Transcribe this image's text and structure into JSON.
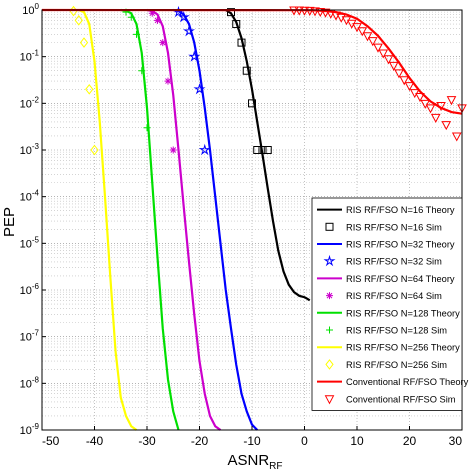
{
  "chart_data": {
    "type": "line",
    "xlabel": "ASNR",
    "xlabel_sub": "RF",
    "ylabel": "PEP",
    "xlim": [
      -50,
      30
    ],
    "ylim": [
      1e-09,
      1
    ],
    "yscale": "log",
    "grid": true,
    "legend_position": "bottom-right",
    "x_ticks": [
      -50,
      -40,
      -30,
      -20,
      -10,
      0,
      10,
      20,
      30
    ],
    "y_ticks": [
      1,
      0.1,
      0.01,
      0.001,
      0.0001,
      1e-05,
      1e-06,
      1e-07,
      1e-08,
      1e-09
    ],
    "y_tick_labels": [
      "10^0",
      "10^-1",
      "10^-2",
      "10^-3",
      "10^-4",
      "10^-5",
      "10^-6",
      "10^-7",
      "10^-8",
      "10^-9"
    ],
    "series": [
      {
        "name": "RIS RF/FSO N=16 Theory",
        "kind": "line",
        "color": "#000000",
        "x": [
          -15,
          -14,
          -13,
          -12,
          -11,
          -10,
          -9,
          -8,
          -7,
          -6,
          -5,
          -4,
          -3,
          -2,
          -1,
          0,
          0.5,
          1
        ],
        "y": [
          1,
          0.85,
          0.55,
          0.25,
          0.08,
          0.02,
          0.004,
          0.0008,
          0.00015,
          3e-05,
          7e-06,
          2.5e-06,
          1.3e-06,
          9e-07,
          7.5e-07,
          7e-07,
          6.5e-07,
          6e-07
        ]
      },
      {
        "name": "RIS RF/FSO N=16 Sim",
        "kind": "marker",
        "marker": "square",
        "color": "#000000",
        "x": [
          -14,
          -13,
          -12,
          -11,
          -10,
          -9,
          -8,
          -7
        ],
        "y": [
          0.9,
          0.5,
          0.2,
          0.05,
          0.01,
          0.001,
          0.001,
          0.001
        ]
      },
      {
        "name": "RIS RF/FSO N=32 Theory",
        "kind": "line",
        "color": "#0000ff",
        "x": [
          -25,
          -24,
          -23,
          -22,
          -21,
          -20,
          -19,
          -18,
          -17,
          -16,
          -15,
          -14,
          -13,
          -12,
          -11,
          -10,
          -9
        ],
        "y": [
          1,
          0.95,
          0.8,
          0.5,
          0.2,
          0.05,
          0.008,
          0.001,
          0.0001,
          1e-05,
          1e-06,
          1.5e-07,
          2.5e-08,
          6e-09,
          2.5e-09,
          1.3e-09,
          1e-09
        ]
      },
      {
        "name": "RIS RF/FSO N=32 Sim",
        "kind": "marker",
        "marker": "star",
        "color": "#0000ff",
        "x": [
          -24,
          -23,
          -22,
          -21,
          -20,
          -19
        ],
        "y": [
          0.9,
          0.7,
          0.35,
          0.1,
          0.02,
          0.001
        ]
      },
      {
        "name": "RIS RF/FSO N=64 Theory",
        "kind": "line",
        "color": "#cc00cc",
        "x": [
          -30,
          -29,
          -28,
          -27,
          -26,
          -25,
          -24,
          -23,
          -22,
          -21,
          -20,
          -19,
          -18,
          -17,
          -16
        ],
        "y": [
          1,
          0.95,
          0.8,
          0.45,
          0.12,
          0.015,
          0.001,
          6e-05,
          4e-06,
          3e-07,
          3e-08,
          6e-09,
          2e-09,
          1.2e-09,
          1e-09
        ]
      },
      {
        "name": "RIS RF/FSO N=64 Sim",
        "kind": "marker",
        "marker": "asterisk",
        "color": "#cc00cc",
        "x": [
          -29,
          -28,
          -27,
          -26,
          -25
        ],
        "y": [
          0.85,
          0.6,
          0.2,
          0.03,
          0.001
        ]
      },
      {
        "name": "RIS RF/FSO N=128 Theory",
        "kind": "line",
        "color": "#00e000",
        "x": [
          -35,
          -34,
          -33,
          -32,
          -31,
          -30,
          -29,
          -28,
          -27,
          -26,
          -25,
          -24
        ],
        "y": [
          1,
          0.97,
          0.85,
          0.5,
          0.12,
          0.008,
          0.0002,
          5e-06,
          1.5e-07,
          1.2e-08,
          2.5e-09,
          1e-09
        ]
      },
      {
        "name": "RIS RF/FSO N=128 Sim",
        "kind": "marker",
        "marker": "plus",
        "color": "#00e000",
        "x": [
          -34,
          -33,
          -32,
          -31,
          -30
        ],
        "y": [
          0.9,
          0.7,
          0.3,
          0.05,
          0.003
        ]
      },
      {
        "name": "RIS RF/FSO N=256 Theory",
        "kind": "line",
        "color": "#ffff00",
        "x": [
          -43,
          -42,
          -41,
          -40,
          -39,
          -38,
          -37,
          -36,
          -35,
          -34,
          -33,
          -32
        ],
        "y": [
          1,
          0.9,
          0.5,
          0.08,
          0.004,
          0.0001,
          2e-06,
          5e-08,
          5e-09,
          2e-09,
          1.2e-09,
          1e-09
        ]
      },
      {
        "name": "RIS RF/FSO N=256 Sim",
        "kind": "marker",
        "marker": "diamond",
        "color": "#ffff00",
        "x": [
          -44,
          -43,
          -42,
          -41,
          -40
        ],
        "y": [
          0.95,
          0.6,
          0.2,
          0.02,
          0.001
        ]
      },
      {
        "name": "Conventional RF/FSO Theory",
        "kind": "line",
        "color": "#ff0000",
        "x": [
          -50,
          0,
          2,
          4,
          6,
          8,
          10,
          12,
          14,
          16,
          18,
          20,
          22,
          24,
          26,
          28,
          30
        ],
        "y": [
          1,
          0.99,
          0.98,
          0.95,
          0.9,
          0.8,
          0.65,
          0.45,
          0.28,
          0.15,
          0.075,
          0.035,
          0.018,
          0.011,
          0.008,
          0.0065,
          0.006
        ]
      },
      {
        "name": "Conventional RF/FSO Sim",
        "kind": "marker",
        "marker": "triangle-down",
        "color": "#ff0000",
        "x": [
          -2,
          -1,
          0,
          1,
          2,
          3,
          4,
          5,
          6,
          7,
          8,
          9,
          10,
          11,
          12,
          13,
          14,
          15,
          16,
          17,
          18,
          19,
          20,
          21,
          22,
          23,
          24,
          25,
          26,
          27,
          28,
          29,
          30
        ],
        "y": [
          1,
          1,
          0.99,
          0.98,
          0.96,
          0.93,
          0.9,
          0.85,
          0.78,
          0.7,
          0.62,
          0.52,
          0.44,
          0.36,
          0.28,
          0.22,
          0.16,
          0.12,
          0.09,
          0.065,
          0.045,
          0.032,
          0.024,
          0.017,
          0.014,
          0.01,
          0.008,
          0.005,
          0.009,
          0.0035,
          0.012,
          0.002,
          0.008
        ]
      }
    ]
  }
}
